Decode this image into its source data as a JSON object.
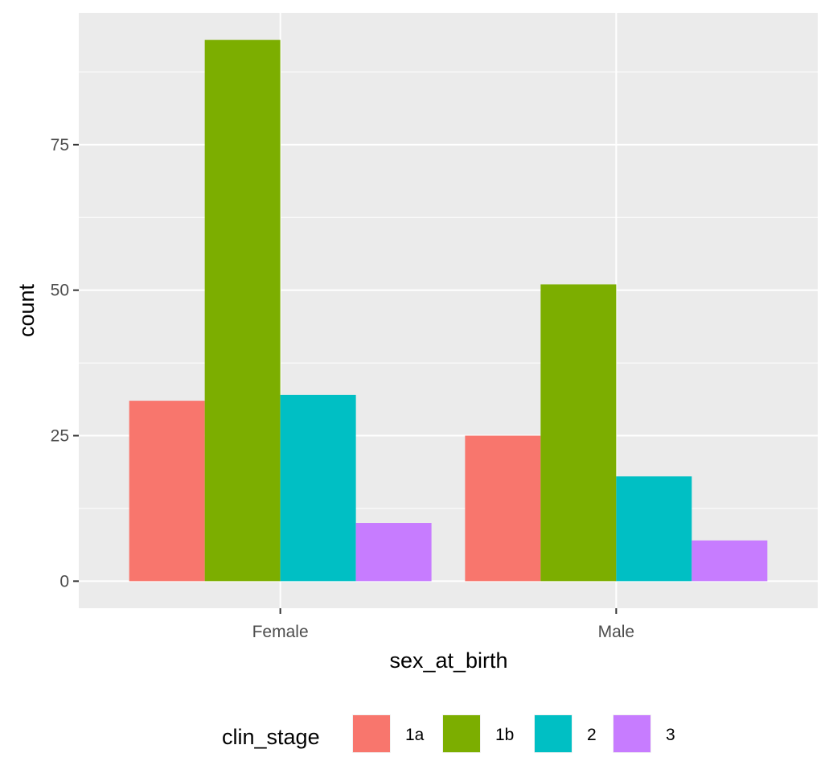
{
  "chart_data": {
    "type": "bar",
    "categories": [
      "Female",
      "Male"
    ],
    "series": [
      {
        "name": "1a",
        "values": [
          31,
          25
        ],
        "color": "#F8766D"
      },
      {
        "name": "1b",
        "values": [
          93,
          51
        ],
        "color": "#7CAE00"
      },
      {
        "name": "2",
        "values": [
          32,
          18
        ],
        "color": "#00BFC4"
      },
      {
        "name": "3",
        "values": [
          10,
          7
        ],
        "color": "#C77CFF"
      }
    ],
    "xlabel": "sex_at_birth",
    "ylabel": "count",
    "yticks": [
      "0",
      "25",
      "50",
      "75"
    ],
    "ylim": [
      -4.65,
      97.65
    ],
    "legend_title": "clin_stage",
    "legend_position": "bottom",
    "grid": true,
    "panel_background": "#EBEBEB"
  }
}
